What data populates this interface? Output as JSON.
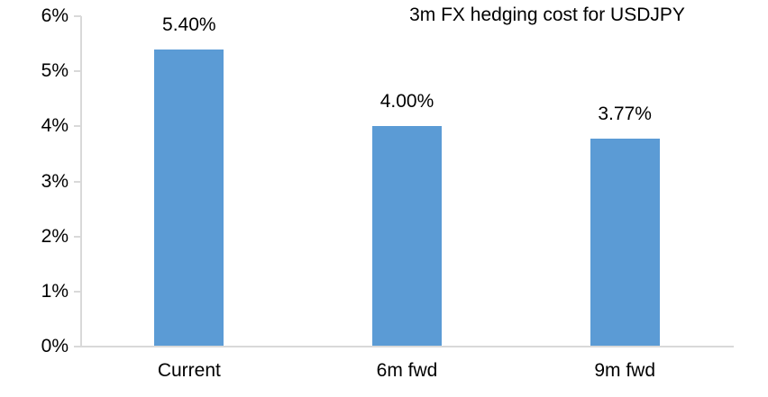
{
  "title": "3m FX hedging cost for USDJPY",
  "colors": {
    "bar": "#5b9bd5",
    "axis": "#d9d9d9",
    "text": "#000000",
    "background": "#ffffff"
  },
  "chart_data": {
    "type": "bar",
    "title": "3m FX hedging cost for USDJPY",
    "categories": [
      "Current",
      "6m fwd",
      "9m fwd"
    ],
    "values": [
      5.4,
      4.0,
      3.77
    ],
    "data_labels": [
      "5.40%",
      "4.00%",
      "3.77%"
    ],
    "xlabel": "",
    "ylabel": "",
    "ylim": [
      0,
      6
    ],
    "ytick_step": 1,
    "ytick_labels": [
      "0%",
      "1%",
      "2%",
      "3%",
      "4%",
      "5%",
      "6%"
    ],
    "grid": false,
    "legend": false,
    "bar_color": "#5b9bd5"
  }
}
